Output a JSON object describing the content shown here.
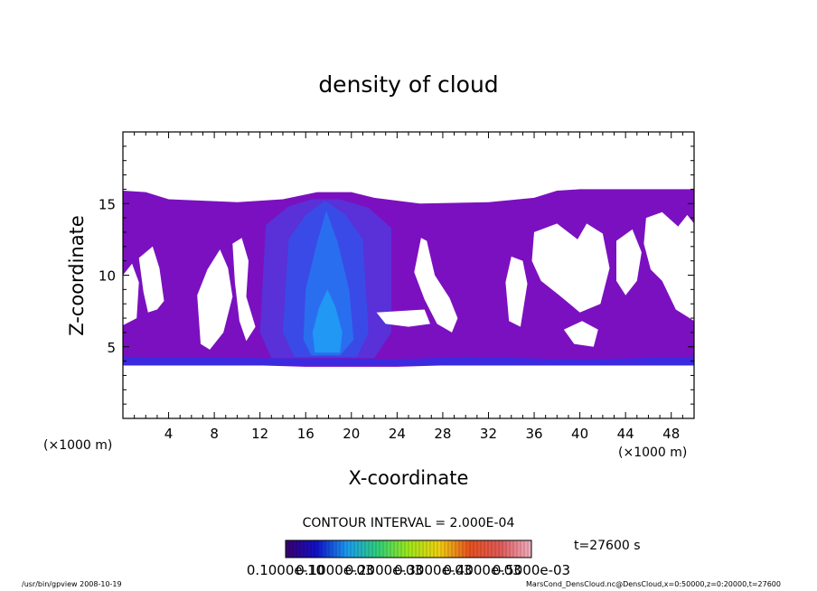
{
  "chart_data": {
    "type": "heatmap",
    "title": "density of cloud",
    "xlabel": "X-coordinate",
    "ylabel": "Z-coordinate",
    "x_unit": "(×1000 m)",
    "y_unit": "(×1000 m)",
    "xlim": [
      0,
      50
    ],
    "ylim": [
      0,
      20
    ],
    "x_ticks": [
      4,
      8,
      12,
      16,
      20,
      24,
      28,
      32,
      36,
      40,
      44,
      48
    ],
    "y_ticks": [
      5,
      10,
      15
    ],
    "colorbar": {
      "contour_interval_label": "CONTOUR INTERVAL = 2.000E-04",
      "tick_labels": [
        "0.1000e-10",
        "0.1000e-03",
        "0.2000e-03",
        "0.3000e-03",
        "0.4000e-03",
        "0.5000e-03"
      ],
      "color_stops": [
        "#3a006e",
        "#1010c8",
        "#1a9bf0",
        "#2fd07a",
        "#9ee81a",
        "#f0d010",
        "#e85020",
        "#e05a5a",
        "#f0b0c0"
      ]
    },
    "time_label": "t=27600 s",
    "regions": [
      {
        "name": "cloud-envelope-left",
        "level": 0.15,
        "color": "#7b10c0",
        "points": [
          [
            0,
            15.9
          ],
          [
            2,
            15.8
          ],
          [
            4,
            15.3
          ],
          [
            10,
            15.1
          ],
          [
            14,
            15.3
          ],
          [
            17,
            15.8
          ],
          [
            20,
            15.8
          ],
          [
            22,
            15.4
          ],
          [
            26,
            15.0
          ],
          [
            32,
            15.1
          ],
          [
            36,
            15.4
          ],
          [
            38,
            15.9
          ],
          [
            40,
            16.0
          ],
          [
            50,
            16.0
          ],
          [
            50,
            3.7
          ],
          [
            45,
            3.7
          ],
          [
            40,
            3.7
          ],
          [
            32,
            3.7
          ],
          [
            28,
            3.7
          ],
          [
            24,
            3.6
          ],
          [
            20,
            3.6
          ],
          [
            16,
            3.6
          ],
          [
            12,
            3.7
          ],
          [
            6,
            3.7
          ],
          [
            0,
            3.7
          ]
        ]
      },
      {
        "name": "core-band-1",
        "level": 0.3,
        "color": "#5a30d8",
        "points": [
          [
            12.5,
            13.5
          ],
          [
            14.5,
            14.8
          ],
          [
            16.5,
            15.3
          ],
          [
            19,
            15.3
          ],
          [
            21.5,
            14.7
          ],
          [
            23.5,
            13.3
          ],
          [
            23.5,
            6
          ],
          [
            22,
            4.2
          ],
          [
            13,
            4.2
          ],
          [
            12,
            6
          ]
        ]
      },
      {
        "name": "core-band-2",
        "level": 0.45,
        "color": "#3a4ae6",
        "points": [
          [
            14.5,
            12.5
          ],
          [
            16,
            14.2
          ],
          [
            17.7,
            15.2
          ],
          [
            19.5,
            14.2
          ],
          [
            21,
            12.5
          ],
          [
            21.5,
            6
          ],
          [
            20.5,
            4.3
          ],
          [
            15,
            4.3
          ],
          [
            14,
            6
          ]
        ]
      },
      {
        "name": "core-band-3",
        "level": 0.6,
        "color": "#2a6ef0",
        "points": [
          [
            16,
            9
          ],
          [
            17,
            12.3
          ],
          [
            17.8,
            14.5
          ],
          [
            18.8,
            12.3
          ],
          [
            19.8,
            9
          ],
          [
            20.2,
            5.5
          ],
          [
            19,
            4.4
          ],
          [
            16.5,
            4.4
          ],
          [
            15.8,
            5.5
          ]
        ]
      },
      {
        "name": "core-band-4",
        "level": 0.8,
        "color": "#2098f4",
        "points": [
          [
            16.6,
            6
          ],
          [
            17.2,
            7.8
          ],
          [
            17.9,
            9
          ],
          [
            18.6,
            7.8
          ],
          [
            19.2,
            6
          ],
          [
            19,
            4.6
          ],
          [
            16.8,
            4.6
          ]
        ]
      },
      {
        "name": "cloud-base-band",
        "level": 0.35,
        "color": "#3c2ae0",
        "points": [
          [
            0,
            4.3
          ],
          [
            12,
            4.2
          ],
          [
            24,
            4.1
          ],
          [
            30,
            4.3
          ],
          [
            40,
            4.1
          ],
          [
            50,
            4.3
          ],
          [
            50,
            3.7
          ],
          [
            0,
            3.7
          ]
        ]
      }
    ],
    "clear_regions": [
      {
        "name": "clear-left-1",
        "points": [
          [
            0,
            10
          ],
          [
            0.8,
            10.8
          ],
          [
            1.4,
            9.5
          ],
          [
            1.2,
            7
          ],
          [
            0,
            6.5
          ]
        ]
      },
      {
        "name": "clear-left-2",
        "points": [
          [
            1.4,
            11.2
          ],
          [
            2.6,
            12
          ],
          [
            3.2,
            10.5
          ],
          [
            3.6,
            8.2
          ],
          [
            3,
            7.6
          ],
          [
            2.2,
            7.4
          ],
          [
            1.8,
            8.8
          ]
        ]
      },
      {
        "name": "clear-left-3",
        "points": [
          [
            6.5,
            8.6
          ],
          [
            7.4,
            10.4
          ],
          [
            8.5,
            11.8
          ],
          [
            9.2,
            10.5
          ],
          [
            9.6,
            8.5
          ],
          [
            8.8,
            6
          ],
          [
            7.6,
            4.8
          ],
          [
            6.8,
            5.2
          ]
        ]
      },
      {
        "name": "clear-left-4",
        "points": [
          [
            9.6,
            12.2
          ],
          [
            10.4,
            12.6
          ],
          [
            11,
            11
          ],
          [
            10.8,
            8.5
          ],
          [
            11.6,
            6.4
          ],
          [
            10.8,
            5.4
          ],
          [
            10.2,
            6.8
          ],
          [
            9.8,
            9.5
          ]
        ]
      },
      {
        "name": "clear-mid-gap",
        "points": [
          [
            22.2,
            7.4
          ],
          [
            26.4,
            7.6
          ],
          [
            26.9,
            6.6
          ],
          [
            25,
            6.4
          ],
          [
            23,
            6.6
          ]
        ]
      },
      {
        "name": "clear-mid-right",
        "points": [
          [
            25.5,
            10.2
          ],
          [
            26.1,
            12.6
          ],
          [
            26.6,
            12.4
          ],
          [
            27.3,
            10
          ],
          [
            28.6,
            8.4
          ],
          [
            29.3,
            7
          ],
          [
            28.8,
            6
          ],
          [
            27.5,
            6.6
          ],
          [
            26.4,
            8.3
          ]
        ]
      },
      {
        "name": "clear-right-1",
        "points": [
          [
            33.5,
            9.5
          ],
          [
            34,
            11.3
          ],
          [
            35,
            11
          ],
          [
            35.4,
            9.4
          ],
          [
            34.8,
            6.4
          ],
          [
            33.8,
            6.8
          ]
        ]
      },
      {
        "name": "clear-right-2",
        "points": [
          [
            36,
            13
          ],
          [
            38,
            13.6
          ],
          [
            39.8,
            12.5
          ],
          [
            40.6,
            13.6
          ],
          [
            42,
            12.9
          ],
          [
            42.6,
            10.5
          ],
          [
            41.8,
            8
          ],
          [
            40,
            7.4
          ],
          [
            38.2,
            8.6
          ],
          [
            36.6,
            9.6
          ],
          [
            35.8,
            11
          ]
        ]
      },
      {
        "name": "clear-right-3",
        "points": [
          [
            43.2,
            12.4
          ],
          [
            44.6,
            13.2
          ],
          [
            45.4,
            11.6
          ],
          [
            45,
            9.6
          ],
          [
            44,
            8.6
          ],
          [
            43.2,
            9.6
          ]
        ]
      },
      {
        "name": "clear-right-4",
        "points": [
          [
            45.8,
            14
          ],
          [
            47.2,
            14.4
          ],
          [
            48.6,
            13.4
          ],
          [
            49.4,
            14.2
          ],
          [
            50,
            13.6
          ],
          [
            50,
            6.8
          ],
          [
            48.4,
            7.6
          ],
          [
            47.2,
            9.6
          ],
          [
            46.2,
            10.4
          ],
          [
            45.6,
            12.2
          ]
        ]
      },
      {
        "name": "clear-right-5",
        "points": [
          [
            38.6,
            6.2
          ],
          [
            40.2,
            6.8
          ],
          [
            41.6,
            6.2
          ],
          [
            41.2,
            5
          ],
          [
            39.5,
            5.2
          ]
        ]
      }
    ]
  },
  "footer": {
    "left": "/usr/bin/gpview   2008-10-19",
    "right": "MarsCond_DensCloud.nc@DensCloud,x=0:50000,z=0:20000,t=27600"
  }
}
